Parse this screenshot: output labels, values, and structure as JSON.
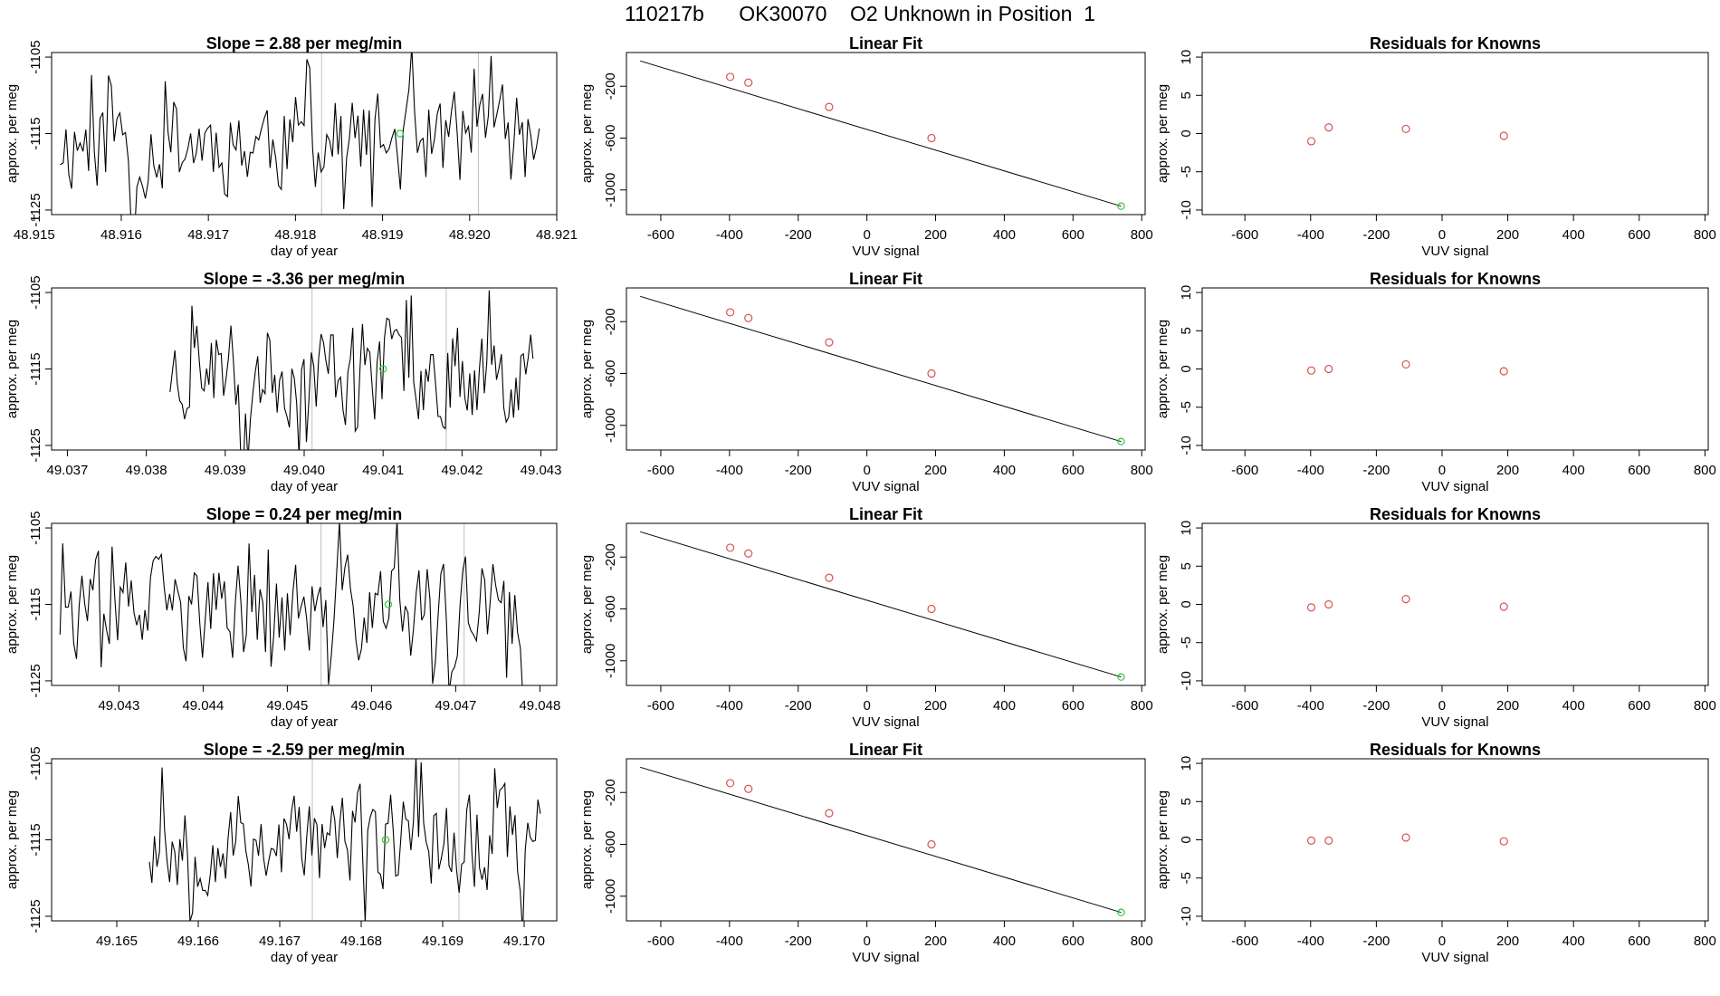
{
  "page": {
    "title": "110217b      OK30070    O2 Unknown in Position  1"
  },
  "colors": {
    "line": "#000000",
    "known_point": "#d9534f",
    "unknown_point": "#2ecc40",
    "gridline": "#bfbfbf",
    "frame": "#000000"
  },
  "chart_data": [
    {
      "type": "line",
      "row": 1,
      "title": "Slope =  2.88  per meg/min",
      "xlabel": "day of year",
      "ylabel": "approx. per meg",
      "xlim": [
        48.9152,
        48.921
      ],
      "ylim": [
        -1125.6,
        -1104.4
      ],
      "xticks": [
        "48.915",
        "48.916",
        "48.917",
        "48.918",
        "48.919",
        "48.920",
        "48.921"
      ],
      "yticks": [
        "-1105",
        "-1115",
        "-1125"
      ],
      "series": [
        {
          "name": "trace",
          "x_start": 48.9153,
          "x_end": 48.9208,
          "points": 170,
          "mean": -1116,
          "amplitude": 7,
          "seed": 11
        }
      ],
      "vlines": [
        48.9183,
        48.9201
      ],
      "unknown_point": {
        "x": 48.9192,
        "y": -1115
      }
    },
    {
      "type": "scatter",
      "row": 1,
      "title": "Linear Fit",
      "xlabel": "VUV signal",
      "ylabel": "approx. per meg",
      "xlim": [
        -700,
        810
      ],
      "ylim": [
        -1190,
        60
      ],
      "xticks": [
        "-600",
        "-400",
        "-200",
        "0",
        "200",
        "400",
        "600",
        "800"
      ],
      "yticks": [
        "-200",
        "-600",
        "-1000"
      ],
      "fit_line": {
        "x": [
          -660,
          740
        ],
        "y": [
          -5,
          -1125
        ]
      },
      "knowns": [
        {
          "x": -398,
          "y": -128
        },
        {
          "x": -345,
          "y": -172
        },
        {
          "x": -110,
          "y": -360
        },
        {
          "x": 188,
          "y": -600
        }
      ],
      "unknown": {
        "x": 740,
        "y": -1125
      }
    },
    {
      "type": "scatter",
      "row": 1,
      "title": "Residuals for Knowns",
      "xlabel": "VUV signal",
      "ylabel": "approx. per meg",
      "xlim": [
        -730,
        810
      ],
      "ylim": [
        -10.6,
        10.6
      ],
      "xticks": [
        "-600",
        "-400",
        "-200",
        "0",
        "200",
        "400",
        "600",
        "800"
      ],
      "yticks": [
        "10",
        "5",
        "0",
        "-5",
        "-10"
      ],
      "points": [
        {
          "x": -398,
          "y": -1.0
        },
        {
          "x": -345,
          "y": 0.8
        },
        {
          "x": -110,
          "y": 0.6
        },
        {
          "x": 188,
          "y": -0.3
        }
      ]
    },
    {
      "type": "line",
      "row": 2,
      "title": "Slope =  -3.36  per meg/min",
      "xlabel": "day of year",
      "ylabel": "approx. per meg",
      "xlim": [
        49.0368,
        49.0432
      ],
      "ylim": [
        -1125.6,
        -1104.4
      ],
      "xticks": [
        "49.037",
        "49.038",
        "49.039",
        "49.040",
        "49.041",
        "49.042",
        "49.043"
      ],
      "yticks": [
        "-1105",
        "-1115",
        "-1125"
      ],
      "series": [
        {
          "name": "trace",
          "x_start": 49.0383,
          "x_end": 49.0429,
          "points": 150,
          "mean": -1115,
          "amplitude": 7,
          "seed": 23
        }
      ],
      "vlines": [
        49.0401,
        49.0418
      ],
      "unknown_point": {
        "x": 49.041,
        "y": -1115
      }
    },
    {
      "type": "scatter",
      "row": 2,
      "title": "Linear Fit",
      "xlabel": "VUV signal",
      "ylabel": "approx. per meg",
      "xlim": [
        -700,
        810
      ],
      "ylim": [
        -1190,
        60
      ],
      "xticks": [
        "-600",
        "-400",
        "-200",
        "0",
        "200",
        "400",
        "600",
        "800"
      ],
      "yticks": [
        "-200",
        "-600",
        "-1000"
      ],
      "fit_line": {
        "x": [
          -660,
          740
        ],
        "y": [
          -5,
          -1125
        ]
      },
      "knowns": [
        {
          "x": -398,
          "y": -128
        },
        {
          "x": -345,
          "y": -172
        },
        {
          "x": -110,
          "y": -360
        },
        {
          "x": 188,
          "y": -600
        }
      ],
      "unknown": {
        "x": 740,
        "y": -1125
      }
    },
    {
      "type": "scatter",
      "row": 2,
      "title": "Residuals for Knowns",
      "xlabel": "VUV signal",
      "ylabel": "approx. per meg",
      "xlim": [
        -730,
        810
      ],
      "ylim": [
        -10.6,
        10.6
      ],
      "xticks": [
        "-600",
        "-400",
        "-200",
        "0",
        "200",
        "400",
        "600",
        "800"
      ],
      "yticks": [
        "10",
        "5",
        "0",
        "-5",
        "-10"
      ],
      "points": [
        {
          "x": -398,
          "y": -0.2
        },
        {
          "x": -345,
          "y": 0.0
        },
        {
          "x": -110,
          "y": 0.6
        },
        {
          "x": 188,
          "y": -0.3
        }
      ]
    },
    {
      "type": "line",
      "row": 3,
      "title": "Slope =  0.24  per meg/min",
      "xlabel": "day of year",
      "ylabel": "approx. per meg",
      "xlim": [
        49.0422,
        49.0482
      ],
      "ylim": [
        -1125.6,
        -1104.4
      ],
      "xticks": [
        "49.043",
        "49.044",
        "49.045",
        "49.046",
        "49.047",
        "49.048"
      ],
      "yticks": [
        "-1105",
        "-1115",
        "-1125"
      ],
      "series": [
        {
          "name": "trace",
          "x_start": 49.0423,
          "x_end": 49.0478,
          "points": 170,
          "mean": -1116,
          "amplitude": 7,
          "seed": 37
        }
      ],
      "vlines": [
        49.0454,
        49.0471
      ],
      "unknown_point": {
        "x": 49.0462,
        "y": -1115
      }
    },
    {
      "type": "scatter",
      "row": 3,
      "title": "Linear Fit",
      "xlabel": "VUV signal",
      "ylabel": "approx. per meg",
      "xlim": [
        -700,
        810
      ],
      "ylim": [
        -1190,
        60
      ],
      "xticks": [
        "-600",
        "-400",
        "-200",
        "0",
        "200",
        "400",
        "600",
        "800"
      ],
      "yticks": [
        "-200",
        "-600",
        "-1000"
      ],
      "fit_line": {
        "x": [
          -660,
          740
        ],
        "y": [
          -5,
          -1125
        ]
      },
      "knowns": [
        {
          "x": -398,
          "y": -128
        },
        {
          "x": -345,
          "y": -172
        },
        {
          "x": -110,
          "y": -360
        },
        {
          "x": 188,
          "y": -600
        }
      ],
      "unknown": {
        "x": 740,
        "y": -1125
      }
    },
    {
      "type": "scatter",
      "row": 3,
      "title": "Residuals for Knowns",
      "xlabel": "VUV signal",
      "ylabel": "approx. per meg",
      "xlim": [
        -730,
        810
      ],
      "ylim": [
        -10.6,
        10.6
      ],
      "xticks": [
        "-600",
        "-400",
        "-200",
        "0",
        "200",
        "400",
        "600",
        "800"
      ],
      "yticks": [
        "10",
        "5",
        "0",
        "-5",
        "-10"
      ],
      "points": [
        {
          "x": -398,
          "y": -0.4
        },
        {
          "x": -345,
          "y": 0.0
        },
        {
          "x": -110,
          "y": 0.7
        },
        {
          "x": 188,
          "y": -0.3
        }
      ]
    },
    {
      "type": "line",
      "row": 4,
      "title": "Slope =  -2.59  per meg/min",
      "xlabel": "day of year",
      "ylabel": "approx. per meg",
      "xlim": [
        49.1642,
        49.1704
      ],
      "ylim": [
        -1125.6,
        -1104.4
      ],
      "xticks": [
        "49.165",
        "49.166",
        "49.167",
        "49.168",
        "49.169",
        "49.170"
      ],
      "yticks": [
        "-1105",
        "-1115",
        "-1125"
      ],
      "series": [
        {
          "name": "trace",
          "x_start": 49.1654,
          "x_end": 49.1702,
          "points": 155,
          "mean": -1115,
          "amplitude": 7,
          "seed": 53
        }
      ],
      "vlines": [
        49.1674,
        49.1692
      ],
      "unknown_point": {
        "x": 49.1683,
        "y": -1115
      }
    },
    {
      "type": "scatter",
      "row": 4,
      "title": "Linear Fit",
      "xlabel": "VUV signal",
      "ylabel": "approx. per meg",
      "xlim": [
        -700,
        810
      ],
      "ylim": [
        -1190,
        60
      ],
      "xticks": [
        "-600",
        "-400",
        "-200",
        "0",
        "200",
        "400",
        "600",
        "800"
      ],
      "yticks": [
        "-200",
        "-600",
        "-1000"
      ],
      "fit_line": {
        "x": [
          -660,
          740
        ],
        "y": [
          -5,
          -1125
        ]
      },
      "knowns": [
        {
          "x": -398,
          "y": -128
        },
        {
          "x": -345,
          "y": -172
        },
        {
          "x": -110,
          "y": -360
        },
        {
          "x": 188,
          "y": -600
        }
      ],
      "unknown": {
        "x": 740,
        "y": -1125
      }
    },
    {
      "type": "scatter",
      "row": 4,
      "title": "Residuals for Knowns",
      "xlabel": "VUV signal",
      "ylabel": "approx. per meg",
      "xlim": [
        -730,
        810
      ],
      "ylim": [
        -10.6,
        10.6
      ],
      "xticks": [
        "-600",
        "-400",
        "-200",
        "0",
        "200",
        "400",
        "600",
        "800"
      ],
      "yticks": [
        "10",
        "5",
        "0",
        "-5",
        "-10"
      ],
      "points": [
        {
          "x": -398,
          "y": -0.1
        },
        {
          "x": -345,
          "y": -0.1
        },
        {
          "x": -110,
          "y": 0.3
        },
        {
          "x": 188,
          "y": -0.2
        }
      ]
    }
  ]
}
